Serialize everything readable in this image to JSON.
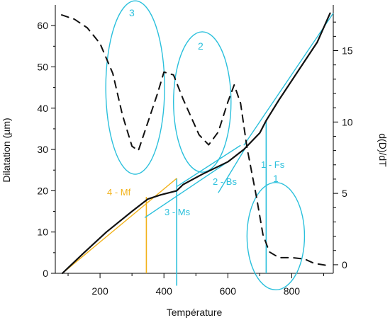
{
  "chart_data": {
    "type": "line",
    "xlabel": "Température",
    "ylabel": "Dilatation (µm)",
    "y2label": "d(D)/dT",
    "xlim": [
      60,
      930
    ],
    "ylim": [
      0,
      65
    ],
    "y2lim": [
      -0.6,
      18.2
    ],
    "xticks": [
      200,
      400,
      600,
      800
    ],
    "yticks": [
      0,
      10,
      20,
      30,
      40,
      50,
      60
    ],
    "y2ticks": [
      0,
      5,
      10,
      15
    ],
    "grid": false,
    "colors": {
      "dilatation": "#111111",
      "derivative": "#111111",
      "cyan": "#2bc0dc",
      "orange": "#f2b21a"
    },
    "series": [
      {
        "axis": "left",
        "style": "solid",
        "points": [
          [
            82,
            0
          ],
          [
            150,
            5
          ],
          [
            220,
            10
          ],
          [
            300,
            15
          ],
          [
            350,
            18
          ],
          [
            390,
            19
          ],
          [
            440,
            20
          ],
          [
            460,
            21.5
          ],
          [
            520,
            24
          ],
          [
            600,
            27
          ],
          [
            650,
            30
          ],
          [
            700,
            34
          ],
          [
            720,
            37
          ],
          [
            760,
            42
          ],
          [
            820,
            49
          ],
          [
            880,
            56
          ],
          [
            920,
            63
          ]
        ]
      },
      {
        "axis": "right",
        "style": "dashed",
        "points": [
          [
            80,
            17.5
          ],
          [
            120,
            17.2
          ],
          [
            160,
            16.6
          ],
          [
            200,
            15.5
          ],
          [
            240,
            13.4
          ],
          [
            270,
            10.5
          ],
          [
            300,
            8.3
          ],
          [
            320,
            8.0
          ],
          [
            350,
            10.0
          ],
          [
            380,
            12.0
          ],
          [
            400,
            13.5
          ],
          [
            430,
            13.3
          ],
          [
            460,
            11.6
          ],
          [
            480,
            10.6
          ],
          [
            510,
            9.1
          ],
          [
            540,
            8.4
          ],
          [
            570,
            9.3
          ],
          [
            600,
            11.4
          ],
          [
            620,
            12.6
          ],
          [
            640,
            11.3
          ],
          [
            660,
            8.2
          ],
          [
            690,
            4.7
          ],
          [
            710,
            2.1
          ],
          [
            730,
            0.9
          ],
          [
            760,
            0.5
          ],
          [
            800,
            0.5
          ],
          [
            840,
            0.4
          ],
          [
            870,
            0.1
          ],
          [
            910,
            -0.05
          ]
        ]
      }
    ],
    "annotations": [
      {
        "kind": "ellipse",
        "label": "3",
        "cx": 310,
        "cy_left": 45,
        "rx_data": 92,
        "ry_left": 21
      },
      {
        "kind": "ellipse",
        "label": "2",
        "cx": 520,
        "cy_left": 41.5,
        "rx_data": 90,
        "ry_left": 17
      },
      {
        "kind": "ellipse",
        "label": "1",
        "cx": 750,
        "cy_left": 9,
        "rx_data": 90,
        "ry_left": 13
      },
      {
        "kind": "vline",
        "label": "3 - Ms",
        "x": 440,
        "y_from": -3,
        "y_to": 23
      },
      {
        "kind": "vline",
        "label": "4 - Mf",
        "x": 345,
        "y_from": 0,
        "y_to": 18.5
      },
      {
        "kind": "vline",
        "label": "",
        "x": 720,
        "y_from": 0,
        "y_to": 37
      },
      {
        "kind": "tangent",
        "label": "",
        "x1": 82,
        "y1": 0,
        "x2": 440,
        "y2": 23
      },
      {
        "kind": "tangent",
        "label": "",
        "x1": 340,
        "y1": 13.5,
        "x2": 600,
        "y2": 27
      },
      {
        "kind": "tangent",
        "label": "",
        "x1": 570,
        "y1": 19.5,
        "x2": 660,
        "y2": 31
      },
      {
        "kind": "tangent",
        "label": "",
        "x1": 440,
        "y1": 21,
        "x2": 640,
        "y2": 31
      },
      {
        "kind": "tangent",
        "label": "",
        "x1": 650,
        "y1": 31,
        "x2": 930,
        "y2": 63
      }
    ]
  },
  "labels": {
    "phase_3": "3",
    "phase_2": "2",
    "phase_1": "1",
    "ms": "3 - Ms",
    "mf": "4 - Mf",
    "fs": "1 - Fs",
    "bs": "2 - Bs"
  }
}
